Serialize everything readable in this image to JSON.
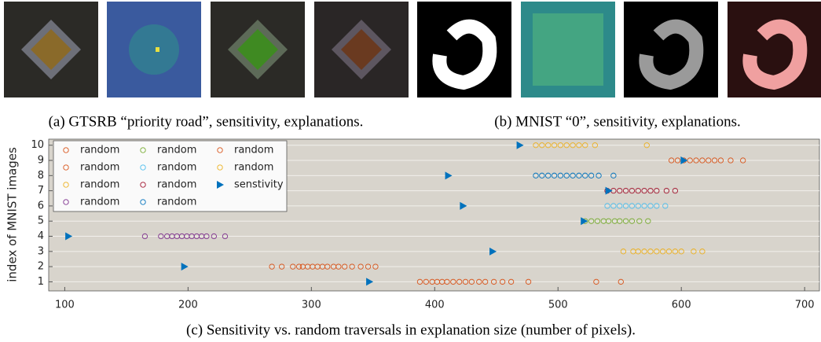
{
  "captions": {
    "a": "(a) GTSRB “priority road”, sensitivity, explanations.",
    "b": "(b) MNIST “0”, sensitivity, explanations."
  },
  "chart_data": {
    "type": "scatter",
    "title": "(c) Sensitivity vs. random traversals in explanation size (number of pixels).",
    "y_label": "index of MNIST images",
    "xlim": [
      87,
      712
    ],
    "ylim": [
      0.4,
      10.4
    ],
    "xticks": [
      100,
      200,
      300,
      400,
      500,
      600,
      700
    ],
    "yticks": [
      1,
      2,
      3,
      4,
      5,
      6,
      7,
      8,
      9,
      10
    ],
    "grid": true,
    "legend": "upper-left",
    "series": [
      {
        "name": "random",
        "color": "#D95319",
        "marker": "circle",
        "x": [
          388,
          393,
          398,
          402,
          406,
          410,
          415,
          420,
          425,
          430,
          436,
          441,
          448,
          455,
          462,
          476,
          531,
          551
        ],
        "y": [
          1,
          1,
          1,
          1,
          1,
          1,
          1,
          1,
          1,
          1,
          1,
          1,
          1,
          1,
          1,
          1,
          1,
          1
        ]
      },
      {
        "name": "random",
        "color": "#D95319",
        "marker": "circle",
        "x": [
          268,
          276,
          285,
          290,
          293,
          297,
          301,
          305,
          309,
          313,
          318,
          322,
          327,
          333,
          340,
          346,
          352
        ],
        "y": [
          2,
          2,
          2,
          2,
          2,
          2,
          2,
          2,
          2,
          2,
          2,
          2,
          2,
          2,
          2,
          2,
          2
        ]
      },
      {
        "name": "random",
        "color": "#EDB120",
        "marker": "circle",
        "x": [
          553,
          561,
          565,
          570,
          575,
          580,
          585,
          590,
          595,
          600,
          610,
          617
        ],
        "y": [
          3,
          3,
          3,
          3,
          3,
          3,
          3,
          3,
          3,
          3,
          3,
          3
        ]
      },
      {
        "name": "random",
        "color": "#7E2F8E",
        "marker": "circle",
        "x": [
          165,
          178,
          183,
          187,
          191,
          195,
          199,
          203,
          207,
          211,
          215,
          221,
          230
        ],
        "y": [
          4,
          4,
          4,
          4,
          4,
          4,
          4,
          4,
          4,
          4,
          4,
          4,
          4
        ]
      },
      {
        "name": "random",
        "color": "#77AC30",
        "marker": "circle",
        "x": [
          522,
          527,
          532,
          537,
          541,
          546,
          550,
          555,
          560,
          566,
          573
        ],
        "y": [
          5,
          5,
          5,
          5,
          5,
          5,
          5,
          5,
          5,
          5,
          5
        ]
      },
      {
        "name": "random",
        "color": "#4DBEEE",
        "marker": "circle",
        "x": [
          540,
          545,
          550,
          555,
          560,
          565,
          570,
          575,
          580,
          587
        ],
        "y": [
          6,
          6,
          6,
          6,
          6,
          6,
          6,
          6,
          6,
          6
        ]
      },
      {
        "name": "random",
        "color": "#A2142F",
        "marker": "circle",
        "x": [
          540,
          545,
          550,
          555,
          560,
          565,
          570,
          575,
          580,
          588,
          595
        ],
        "y": [
          7,
          7,
          7,
          7,
          7,
          7,
          7,
          7,
          7,
          7,
          7
        ]
      },
      {
        "name": "random",
        "color": "#0072BD",
        "marker": "circle",
        "x": [
          482,
          487,
          492,
          497,
          502,
          507,
          512,
          517,
          522,
          527,
          533,
          545
        ],
        "y": [
          8,
          8,
          8,
          8,
          8,
          8,
          8,
          8,
          8,
          8,
          8,
          8
        ]
      },
      {
        "name": "random",
        "color": "#D95319",
        "marker": "circle",
        "x": [
          592,
          597,
          602,
          607,
          612,
          617,
          622,
          627,
          632,
          640,
          650
        ],
        "y": [
          9,
          9,
          9,
          9,
          9,
          9,
          9,
          9,
          9,
          9,
          9
        ]
      },
      {
        "name": "random",
        "color": "#EDB120",
        "marker": "circle",
        "x": [
          482,
          487,
          492,
          497,
          502,
          507,
          512,
          517,
          522,
          530,
          572
        ],
        "y": [
          10,
          10,
          10,
          10,
          10,
          10,
          10,
          10,
          10,
          10,
          10
        ]
      },
      {
        "name": "senstivity",
        "color": "#0072BD",
        "marker": "triangle",
        "x": [
          347,
          197,
          447,
          103,
          521,
          423,
          541,
          411,
          602,
          469
        ],
        "y": [
          1,
          2,
          3,
          4,
          5,
          6,
          7,
          8,
          9,
          10
        ]
      }
    ]
  }
}
